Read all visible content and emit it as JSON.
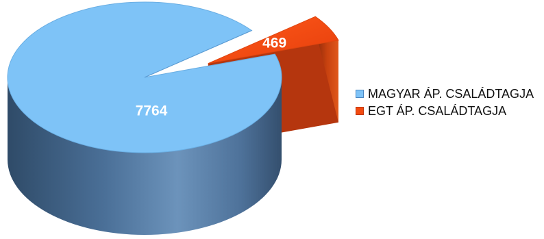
{
  "chart_data": {
    "type": "pie",
    "title": "",
    "labels": [
      "MAGYAR ÁP. CSALÁDTAGJA",
      "EGT ÁP. CSALÁDTAGJA"
    ],
    "values": [
      7764,
      469
    ],
    "data_labels": [
      "7764",
      "469"
    ],
    "colors": [
      "#7EC3F7",
      "#F24A10"
    ],
    "side_colors": [
      "#476D95",
      "#B5360E"
    ],
    "exploded_slice": "EGT ÁP. CSALÁDTAGJA",
    "style": "3d",
    "legend_position": "right"
  }
}
